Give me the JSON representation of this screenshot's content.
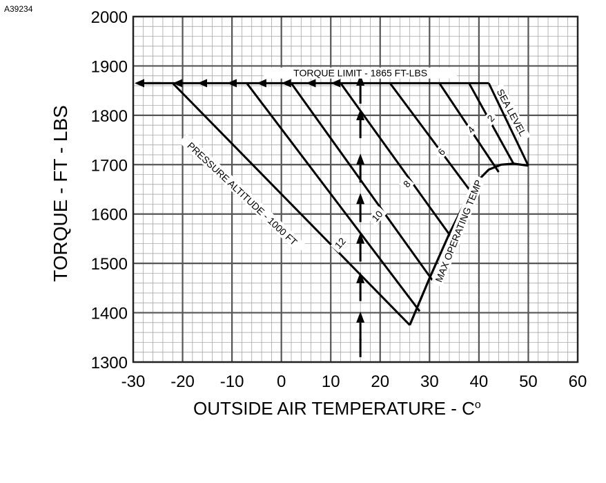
{
  "doc_id": "A39234",
  "chart_data": {
    "type": "line",
    "xlabel": "OUTSIDE AIR TEMPERATURE  -   C",
    "xlabel_unit_sup": "o",
    "ylabel": "TORQUE  -   FT - LBS",
    "xlim": [
      -30,
      60
    ],
    "ylim": [
      1300,
      2000
    ],
    "x_ticks": [
      -30,
      -20,
      -10,
      0,
      10,
      20,
      30,
      40,
      50,
      60
    ],
    "y_ticks": [
      1300,
      1400,
      1500,
      1600,
      1700,
      1800,
      1900,
      2000
    ],
    "grid": true,
    "minor_grid_step_x": 2,
    "minor_grid_step_y": 20,
    "torque_limit": {
      "label": "TORQUE LIMIT - 1865 FT-LBS",
      "value": 1865,
      "x": [
        -30,
        42
      ]
    },
    "pressure_altitude_label": "PRESSURE ALTITUDE - 1000 FT",
    "max_operating_temp_label": "MAX OPERATING TEMP",
    "max_operating_temp_curve": {
      "x": [
        26,
        30,
        34,
        37,
        39.5,
        42,
        44.5,
        47,
        50
      ],
      "y": [
        1375,
        1470,
        1560,
        1620,
        1665,
        1690,
        1700,
        1702,
        1698
      ]
    },
    "series": [
      {
        "name": "SEA LEVEL",
        "x": [
          42,
          50
        ],
        "y": [
          1865,
          1698
        ]
      },
      {
        "name": "2",
        "x": [
          38,
          47
        ],
        "y": [
          1865,
          1702
        ]
      },
      {
        "name": "4",
        "x": [
          32,
          44
        ],
        "y": [
          1865,
          1685
        ]
      },
      {
        "name": "6",
        "x": [
          22,
          39.5
        ],
        "y": [
          1865,
          1630
        ]
      },
      {
        "name": "8",
        "x": [
          12,
          35
        ],
        "y": [
          1865,
          1545
        ]
      },
      {
        "name": "10",
        "x": [
          2,
          31
        ],
        "y": [
          1865,
          1460
        ]
      },
      {
        "name": "12",
        "x": [
          -7,
          28
        ],
        "y": [
          1865,
          1403
        ]
      },
      {
        "name": "",
        "x": [
          -22,
          26
        ],
        "y": [
          1865,
          1375
        ]
      }
    ],
    "series_labels": [
      {
        "text": "SEA LEVEL",
        "x": 46.5,
        "y": 1805,
        "angle": 62
      },
      {
        "text": "2",
        "x": 42.5,
        "y": 1793,
        "angle": -48
      },
      {
        "text": "4",
        "x": 38.5,
        "y": 1770,
        "angle": -48
      },
      {
        "text": "6",
        "x": 32.5,
        "y": 1725,
        "angle": -48
      },
      {
        "text": "8",
        "x": 25.5,
        "y": 1660,
        "angle": -48
      },
      {
        "text": "10",
        "x": 19.5,
        "y": 1595,
        "angle": -48
      },
      {
        "text": "12",
        "x": 12,
        "y": 1540,
        "angle": -48
      }
    ],
    "arrows_left": {
      "y": 1865,
      "x": [
        -30,
        -22,
        -17,
        -11,
        -5,
        0,
        5,
        10
      ]
    },
    "arrows_up": {
      "x": 16,
      "y": [
        1310,
        1380,
        1460,
        1540,
        1620,
        1700,
        1790,
        1860
      ]
    }
  }
}
